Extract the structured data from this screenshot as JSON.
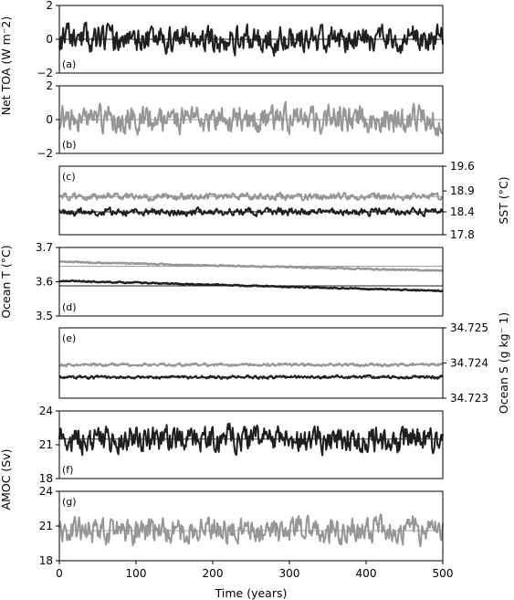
{
  "chart_data": {
    "type": "line",
    "xlabel": "Time (years)",
    "xlim": [
      0,
      500
    ],
    "xticks": [
      "0",
      "100",
      "200",
      "300",
      "400",
      "500"
    ],
    "colors": {
      "dark": "#1f1f1f",
      "light": "#969696"
    },
    "shared_labels": {
      "net_toa": "Net TOA (W m⁻2)",
      "amoc": "AMOC (Sv)"
    },
    "panels": [
      {
        "id": "a",
        "label": "(a)",
        "ylim": [
          -2,
          2
        ],
        "ticks": [
          "2",
          "0",
          "−2"
        ],
        "tick_values": [
          2,
          0,
          -2
        ],
        "tick_side": "left",
        "ylabel": "",
        "series": [
          {
            "color": "dark",
            "mean": 0.0,
            "amp": 0.6,
            "trend": 0,
            "seed": 11
          }
        ]
      },
      {
        "id": "b",
        "label": "(b)",
        "ylim": [
          -2,
          2
        ],
        "ticks": [
          "2",
          "0",
          "−2"
        ],
        "tick_values": [
          2,
          0,
          -2
        ],
        "tick_side": "left",
        "ylabel": "",
        "series": [
          {
            "color": "light",
            "mean": 0.0,
            "amp": 0.6,
            "trend": 0,
            "seed": 23
          }
        ]
      },
      {
        "id": "c",
        "label": "(c)",
        "ylim": [
          17.8,
          19.6
        ],
        "ticks": [
          "19.6",
          "18.9",
          "18.4",
          "17.8"
        ],
        "tick_values": [
          19.6,
          18.95,
          18.4,
          17.8
        ],
        "tick_side": "right",
        "ylabel": "SST (°C)",
        "series": [
          {
            "color": "light",
            "mean": 18.8,
            "amp": 0.07,
            "trend": 0,
            "seed": 5
          },
          {
            "color": "dark",
            "mean": 18.4,
            "amp": 0.07,
            "trend": 0,
            "seed": 7
          }
        ]
      },
      {
        "id": "d",
        "label": "(d)",
        "ylim": [
          3.5,
          3.7
        ],
        "ticks": [
          "3.7",
          "3.6",
          "3.5"
        ],
        "tick_values": [
          3.7,
          3.6,
          3.5
        ],
        "tick_side": "left",
        "ylabel": "Ocean T (°C)",
        "series": [
          {
            "color": "light",
            "mean": 3.658,
            "amp": 0.0015,
            "trend": -0.026,
            "seed": 3
          },
          {
            "color": "dark",
            "mean": 3.603,
            "amp": 0.0015,
            "trend": -0.03,
            "seed": 9
          }
        ]
      },
      {
        "id": "e",
        "label": "(e)",
        "ylim": [
          34.723,
          34.725
        ],
        "ticks": [
          "34.725",
          "34.724",
          "34.723"
        ],
        "tick_values": [
          34.725,
          34.724,
          34.723
        ],
        "tick_side": "right",
        "ylabel": "Ocean S (g kg⁻ 1)",
        "series": [
          {
            "color": "light",
            "mean": 34.72395,
            "amp": 3.5e-05,
            "trend": 0,
            "seed": 13
          },
          {
            "color": "dark",
            "mean": 34.7236,
            "amp": 3.5e-05,
            "trend": 0,
            "seed": 17
          }
        ]
      },
      {
        "id": "f",
        "label": "(f)",
        "ylim": [
          18,
          24
        ],
        "ticks": [
          "24",
          "21",
          "18"
        ],
        "tick_values": [
          24,
          21,
          18
        ],
        "tick_side": "left",
        "ylabel": "",
        "series": [
          {
            "color": "dark",
            "mean": 21.5,
            "amp": 0.9,
            "trend": 0,
            "seed": 29
          }
        ]
      },
      {
        "id": "g",
        "label": "(g)",
        "ylim": [
          18,
          24
        ],
        "ticks": [
          "24",
          "21",
          "18"
        ],
        "tick_values": [
          24,
          21,
          18
        ],
        "tick_side": "left",
        "ylabel": "",
        "series": [
          {
            "color": "light",
            "mean": 20.6,
            "amp": 0.85,
            "trend": 0,
            "seed": 31
          }
        ]
      }
    ]
  }
}
